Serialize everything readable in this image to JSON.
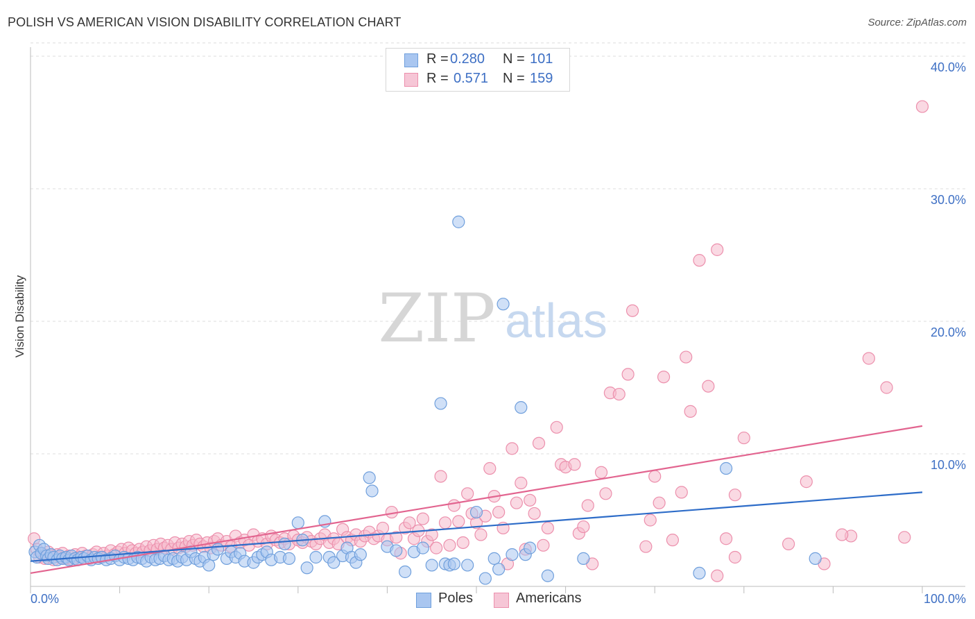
{
  "title": "POLISH VS AMERICAN VISION DISABILITY CORRELATION CHART",
  "source": "Source: ZipAtlas.com",
  "watermark": {
    "zip": "ZIP",
    "atlas": "atlas"
  },
  "colors": {
    "poles_fill": "#a9c6f0",
    "poles_stroke": "#6f9fdc",
    "poles_line": "#2d6cc8",
    "americans_fill": "#f6b9cc",
    "americans_stroke": "#ec8fac",
    "americans_line": "#e2648f",
    "tick_label": "#3d6fc4",
    "grid": "#dcdcdc"
  },
  "legend": {
    "poles": {
      "r_label": "R =",
      "r_value": "0.280",
      "n_label": "N =",
      "n_value": "101"
    },
    "americans": {
      "r_label": "R =",
      "r_value": "0.571",
      "n_label": "N =",
      "n_value": "159"
    }
  },
  "bottom_legend": {
    "poles": "Poles",
    "americans": "Americans"
  },
  "chart_data": {
    "type": "scatter",
    "title": "POLISH VS AMERICAN VISION DISABILITY CORRELATION CHART",
    "xlabel": "",
    "ylabel": "Vision Disability",
    "xlim": [
      0,
      100
    ],
    "ylim": [
      0,
      42
    ],
    "x_tick_labels": [
      {
        "value": 0,
        "label": "0.0%"
      },
      {
        "value": 100,
        "label": "100.0%"
      }
    ],
    "y_tick_labels": [
      {
        "value": 10,
        "label": "10.0%"
      },
      {
        "value": 20,
        "label": "20.0%"
      },
      {
        "value": 30,
        "label": "30.0%"
      },
      {
        "value": 40,
        "label": "40.0%"
      }
    ],
    "grid": "horizontal dashed",
    "legend_position": "top-center",
    "series": [
      {
        "name": "Poles",
        "trend": {
          "x": [
            0,
            100
          ],
          "y": [
            1.9,
            7.1
          ]
        },
        "points": [
          [
            0.5,
            2.6
          ],
          [
            0.7,
            2.2
          ],
          [
            1,
            3.1
          ],
          [
            1.2,
            2.5
          ],
          [
            1.5,
            2.8
          ],
          [
            1.8,
            2.3
          ],
          [
            2,
            2.1
          ],
          [
            2.3,
            2.4
          ],
          [
            2.6,
            2.2
          ],
          [
            3,
            2.0
          ],
          [
            3.3,
            2.3
          ],
          [
            3.6,
            2.1
          ],
          [
            4,
            2.2
          ],
          [
            4.3,
            2.0
          ],
          [
            4.6,
            2.3
          ],
          [
            5,
            2.1
          ],
          [
            5.3,
            2.0
          ],
          [
            5.7,
            2.2
          ],
          [
            6,
            2.1
          ],
          [
            6.4,
            2.3
          ],
          [
            6.8,
            2.0
          ],
          [
            7.2,
            2.2
          ],
          [
            7.6,
            2.1
          ],
          [
            8,
            2.2
          ],
          [
            8.5,
            2.0
          ],
          [
            9,
            2.1
          ],
          [
            9.5,
            2.3
          ],
          [
            10,
            2.0
          ],
          [
            10.5,
            2.2
          ],
          [
            11,
            2.1
          ],
          [
            11.5,
            2.0
          ],
          [
            12,
            2.2
          ],
          [
            12.5,
            2.1
          ],
          [
            13,
            1.9
          ],
          [
            13.5,
            2.2
          ],
          [
            14,
            2.0
          ],
          [
            14.5,
            2.1
          ],
          [
            15,
            2.3
          ],
          [
            15.5,
            2.0
          ],
          [
            16,
            2.1
          ],
          [
            16.5,
            1.9
          ],
          [
            17,
            2.2
          ],
          [
            17.5,
            2.0
          ],
          [
            18,
            2.6
          ],
          [
            18.5,
            2.1
          ],
          [
            19,
            1.9
          ],
          [
            19.5,
            2.2
          ],
          [
            20,
            1.6
          ],
          [
            20.5,
            2.4
          ],
          [
            21,
            2.8
          ],
          [
            22,
            2.1
          ],
          [
            22.5,
            2.6
          ],
          [
            23,
            2.2
          ],
          [
            23.5,
            2.5
          ],
          [
            24,
            1.9
          ],
          [
            25,
            1.8
          ],
          [
            25.5,
            2.2
          ],
          [
            26,
            2.4
          ],
          [
            26.5,
            2.6
          ],
          [
            27,
            2.0
          ],
          [
            28,
            2.2
          ],
          [
            28.5,
            3.2
          ],
          [
            29,
            2.1
          ],
          [
            30,
            4.8
          ],
          [
            30.5,
            3.5
          ],
          [
            31,
            1.4
          ],
          [
            32,
            2.2
          ],
          [
            33,
            4.9
          ],
          [
            33.5,
            2.2
          ],
          [
            34,
            1.8
          ],
          [
            35,
            2.3
          ],
          [
            35.5,
            2.9
          ],
          [
            36,
            2.2
          ],
          [
            36.5,
            1.8
          ],
          [
            37,
            2.4
          ],
          [
            38,
            8.2
          ],
          [
            38.3,
            7.2
          ],
          [
            40,
            3.0
          ],
          [
            41,
            2.7
          ],
          [
            42,
            1.1
          ],
          [
            43,
            2.6
          ],
          [
            44,
            2.9
          ],
          [
            45,
            1.6
          ],
          [
            46,
            13.8
          ],
          [
            46.5,
            1.7
          ],
          [
            47,
            1.6
          ],
          [
            47.5,
            1.7
          ],
          [
            48,
            27.5
          ],
          [
            49,
            1.6
          ],
          [
            50,
            5.6
          ],
          [
            51,
            0.6
          ],
          [
            52,
            2.1
          ],
          [
            52.5,
            1.3
          ],
          [
            53,
            21.3
          ],
          [
            54,
            2.4
          ],
          [
            55,
            13.5
          ],
          [
            55.5,
            2.4
          ],
          [
            56,
            2.9
          ],
          [
            58,
            0.8
          ],
          [
            62,
            2.1
          ],
          [
            75,
            1.0
          ],
          [
            78,
            8.9
          ],
          [
            88,
            2.1
          ]
        ]
      },
      {
        "name": "Americans",
        "trend": {
          "x": [
            0,
            100
          ],
          "y": [
            1.0,
            12.1
          ]
        },
        "points": [
          [
            0.4,
            3.6
          ],
          [
            0.7,
            2.8
          ],
          [
            1,
            2.2
          ],
          [
            1.3,
            2.5
          ],
          [
            1.6,
            2.1
          ],
          [
            2,
            2.6
          ],
          [
            2.3,
            2.3
          ],
          [
            2.6,
            2.0
          ],
          [
            3,
            2.4
          ],
          [
            3.3,
            2.2
          ],
          [
            3.6,
            2.5
          ],
          [
            4,
            2.1
          ],
          [
            4.3,
            2.3
          ],
          [
            4.7,
            2.0
          ],
          [
            5,
            2.4
          ],
          [
            5.4,
            2.2
          ],
          [
            5.8,
            2.5
          ],
          [
            6.2,
            2.3
          ],
          [
            6.6,
            2.1
          ],
          [
            7,
            2.4
          ],
          [
            7.4,
            2.6
          ],
          [
            7.8,
            2.2
          ],
          [
            8.2,
            2.5
          ],
          [
            8.6,
            2.3
          ],
          [
            9,
            2.7
          ],
          [
            9.4,
            2.4
          ],
          [
            9.8,
            2.6
          ],
          [
            10.2,
            2.8
          ],
          [
            10.6,
            2.5
          ],
          [
            11,
            2.9
          ],
          [
            11.4,
            2.7
          ],
          [
            11.8,
            2.5
          ],
          [
            12.2,
            2.8
          ],
          [
            12.6,
            2.6
          ],
          [
            13,
            3.0
          ],
          [
            13.4,
            2.7
          ],
          [
            13.8,
            3.1
          ],
          [
            14.2,
            2.8
          ],
          [
            14.6,
            3.2
          ],
          [
            15,
            2.9
          ],
          [
            15.4,
            3.1
          ],
          [
            15.8,
            2.8
          ],
          [
            16.2,
            3.3
          ],
          [
            16.6,
            2.9
          ],
          [
            17,
            3.2
          ],
          [
            17.4,
            3.0
          ],
          [
            17.8,
            3.4
          ],
          [
            18.2,
            3.1
          ],
          [
            18.6,
            3.5
          ],
          [
            19,
            3.2
          ],
          [
            19.4,
            3.0
          ],
          [
            19.8,
            3.3
          ],
          [
            20.2,
            2.9
          ],
          [
            20.6,
            3.4
          ],
          [
            21,
            3.6
          ],
          [
            21.4,
            3.1
          ],
          [
            22,
            3.4
          ],
          [
            22.5,
            3.0
          ],
          [
            23,
            3.8
          ],
          [
            23.5,
            3.3
          ],
          [
            24,
            3.5
          ],
          [
            24.5,
            3.1
          ],
          [
            25,
            3.9
          ],
          [
            25.5,
            3.4
          ],
          [
            26,
            3.6
          ],
          [
            26.5,
            3.2
          ],
          [
            27,
            3.8
          ],
          [
            27.5,
            3.5
          ],
          [
            28,
            3.3
          ],
          [
            28.5,
            3.6
          ],
          [
            29,
            3.2
          ],
          [
            29.5,
            3.8
          ],
          [
            30,
            3.5
          ],
          [
            30.5,
            3.3
          ],
          [
            31,
            3.7
          ],
          [
            31.5,
            3.4
          ],
          [
            32,
            3.2
          ],
          [
            32.5,
            3.6
          ],
          [
            33,
            3.9
          ],
          [
            33.5,
            3.3
          ],
          [
            34,
            3.6
          ],
          [
            34.5,
            3.2
          ],
          [
            35,
            4.3
          ],
          [
            35.5,
            3.7
          ],
          [
            36,
            3.5
          ],
          [
            36.5,
            3.9
          ],
          [
            37,
            3.4
          ],
          [
            37.5,
            3.8
          ],
          [
            38,
            4.1
          ],
          [
            38.5,
            3.6
          ],
          [
            39,
            3.8
          ],
          [
            39.5,
            4.4
          ],
          [
            40,
            3.5
          ],
          [
            40.5,
            5.6
          ],
          [
            41,
            3.7
          ],
          [
            41.5,
            2.5
          ],
          [
            42,
            4.4
          ],
          [
            42.5,
            4.8
          ],
          [
            43,
            3.6
          ],
          [
            43.5,
            4.2
          ],
          [
            44,
            5.1
          ],
          [
            44.5,
            3.4
          ],
          [
            45,
            3.9
          ],
          [
            45.5,
            2.9
          ],
          [
            46,
            8.3
          ],
          [
            46.5,
            4.8
          ],
          [
            47,
            3.1
          ],
          [
            47.5,
            6.1
          ],
          [
            48,
            4.9
          ],
          [
            48.5,
            3.3
          ],
          [
            49,
            7.0
          ],
          [
            49.5,
            5.5
          ],
          [
            50,
            4.8
          ],
          [
            50.5,
            3.9
          ],
          [
            51,
            5.3
          ],
          [
            51.5,
            8.9
          ],
          [
            52,
            6.8
          ],
          [
            52.5,
            5.6
          ],
          [
            53,
            4.4
          ],
          [
            53.5,
            1.7
          ],
          [
            54,
            10.4
          ],
          [
            54.5,
            6.3
          ],
          [
            55,
            7.8
          ],
          [
            55.5,
            2.8
          ],
          [
            56,
            6.5
          ],
          [
            56.5,
            5.5
          ],
          [
            57,
            10.8
          ],
          [
            57.5,
            3.1
          ],
          [
            58,
            4.4
          ],
          [
            59,
            12.0
          ],
          [
            59.5,
            9.2
          ],
          [
            60,
            9.0
          ],
          [
            61,
            9.2
          ],
          [
            61.5,
            4.0
          ],
          [
            62,
            4.5
          ],
          [
            62.5,
            6.1
          ],
          [
            63,
            1.7
          ],
          [
            64,
            8.6
          ],
          [
            64.5,
            7.0
          ],
          [
            65,
            14.6
          ],
          [
            66,
            14.5
          ],
          [
            67,
            16.0
          ],
          [
            67.5,
            20.8
          ],
          [
            69,
            3.0
          ],
          [
            69.5,
            5.0
          ],
          [
            70,
            8.3
          ],
          [
            70.5,
            6.3
          ],
          [
            71,
            15.8
          ],
          [
            72,
            3.5
          ],
          [
            73,
            7.1
          ],
          [
            73.5,
            17.3
          ],
          [
            74,
            13.2
          ],
          [
            75,
            24.6
          ],
          [
            76,
            15.1
          ],
          [
            77,
            25.4
          ],
          [
            78,
            3.6
          ],
          [
            79,
            6.9
          ],
          [
            80,
            11.2
          ],
          [
            85,
            3.2
          ],
          [
            87,
            7.9
          ],
          [
            89,
            1.7
          ],
          [
            92,
            3.8
          ],
          [
            94,
            17.2
          ],
          [
            98,
            3.7
          ],
          [
            100,
            36.2
          ],
          [
            77,
            0.8
          ],
          [
            79,
            2.2
          ],
          [
            91,
            3.9
          ],
          [
            96,
            15.0
          ]
        ]
      }
    ]
  }
}
